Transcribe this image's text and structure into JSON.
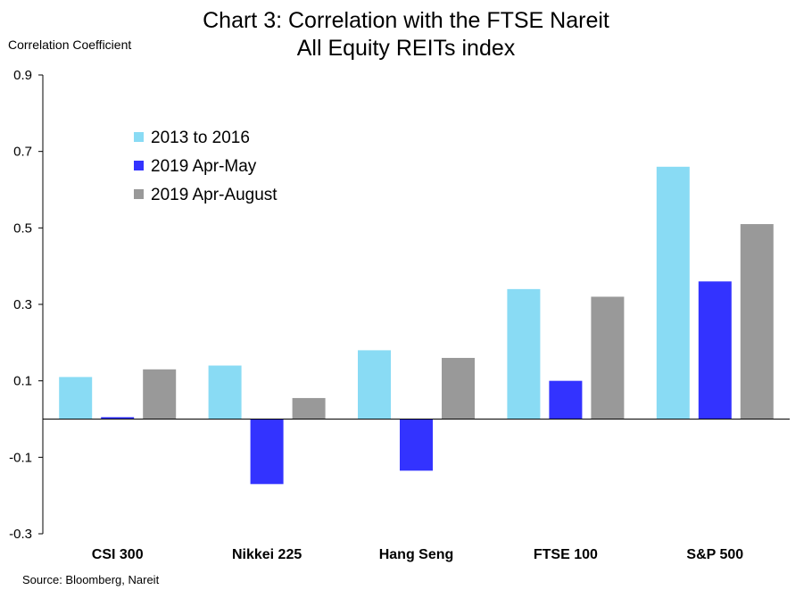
{
  "chart_data": {
    "type": "bar",
    "title_line1": "Chart 3: Correlation with the FTSE Nareit",
    "title_line2": "All Equity REITs index",
    "ylabel": "Correlation Coefficient",
    "xlabel": "",
    "ylim": [
      -0.3,
      0.9
    ],
    "yticks": [
      -0.3,
      -0.1,
      0.1,
      0.3,
      0.5,
      0.7,
      0.9
    ],
    "ytick_labels": [
      "-0.3",
      "-0.1",
      "0.1",
      "0.3",
      "0.5",
      "0.7",
      "0.9"
    ],
    "categories": [
      "CSI 300",
      "Nikkei 225",
      "Hang Seng",
      "FTSE 100",
      "S&P 500"
    ],
    "series": [
      {
        "name": "2013 to 2016",
        "color": "#89dbf4",
        "values": [
          0.11,
          0.14,
          0.18,
          0.34,
          0.66
        ]
      },
      {
        "name": "2019 Apr-May",
        "color": "#3333ff",
        "values": [
          0.005,
          -0.17,
          -0.135,
          0.1,
          0.36
        ]
      },
      {
        "name": "2019 Apr-August",
        "color": "#999999",
        "values": [
          0.13,
          0.055,
          0.16,
          0.32,
          0.51
        ]
      }
    ],
    "legend_position": "top-left",
    "grid": false,
    "source": "Source: Bloomberg, Nareit"
  }
}
